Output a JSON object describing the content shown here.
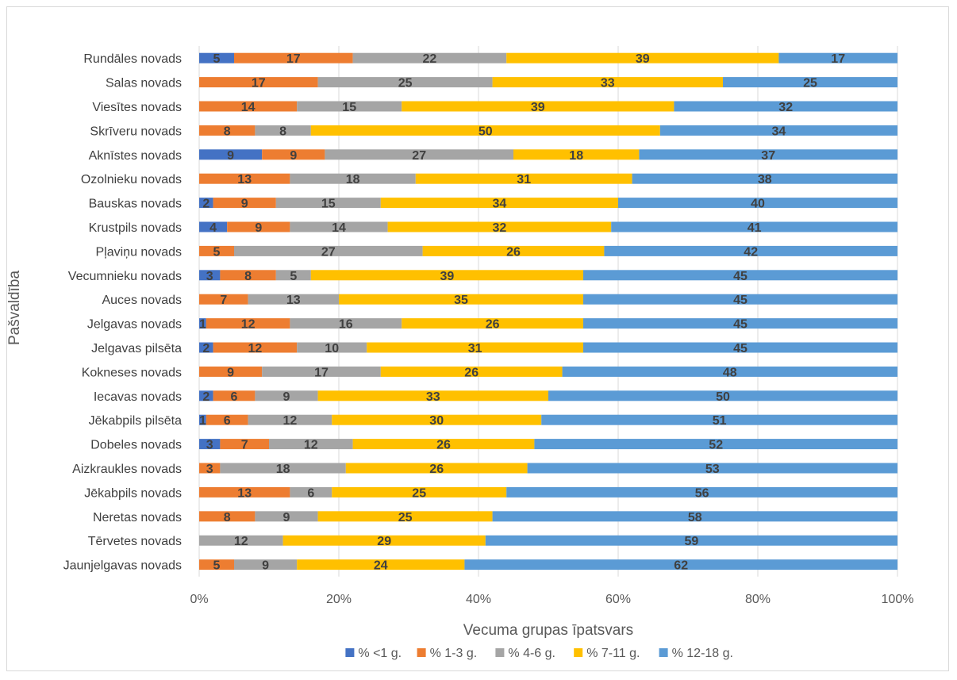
{
  "chart_data": {
    "type": "bar",
    "orientation": "horizontal",
    "stacked": "percent",
    "title": "",
    "xlabel": "Vecuma grupas īpatsvars",
    "ylabel": "Pašvaldība",
    "xlim": [
      0,
      100
    ],
    "xticks": [
      "0%",
      "20%",
      "40%",
      "60%",
      "80%",
      "100%"
    ],
    "grid": true,
    "legend_position": "bottom",
    "categories": [
      "Rundāles novads",
      "Salas novads",
      "Viesītes novads",
      "Skrīveru novads",
      "Aknīstes novads",
      "Ozolnieku novads",
      "Bauskas novads",
      "Krustpils novads",
      "Pļaviņu novads",
      "Vecumnieku novads",
      "Auces novads",
      "Jelgavas novads",
      "Jelgavas pilsēta",
      "Kokneses novads",
      "Iecavas novads",
      "Jēkabpils pilsēta",
      "Dobeles novads",
      "Aizkraukles novads",
      "Jēkabpils novads",
      "Neretas novads",
      "Tērvetes novads",
      "Jaunjelgavas novads"
    ],
    "series": [
      {
        "name": "% <1 g.",
        "color": "#4472C4",
        "values": [
          5,
          0,
          0,
          0,
          9,
          0,
          2,
          4,
          0,
          3,
          0,
          1,
          2,
          0,
          2,
          1,
          3,
          0,
          0,
          0,
          0,
          0
        ]
      },
      {
        "name": "% 1-3 g.",
        "color": "#ED7D31",
        "values": [
          17,
          17,
          14,
          8,
          9,
          13,
          9,
          9,
          5,
          8,
          7,
          12,
          12,
          9,
          6,
          6,
          7,
          3,
          13,
          8,
          0,
          5
        ]
      },
      {
        "name": "% 4-6 g.",
        "color": "#A5A5A5",
        "values": [
          22,
          25,
          15,
          8,
          27,
          18,
          15,
          14,
          27,
          5,
          13,
          16,
          10,
          17,
          9,
          12,
          12,
          18,
          6,
          9,
          12,
          9
        ]
      },
      {
        "name": "% 7-11 g.",
        "color": "#FFC000",
        "values": [
          39,
          33,
          39,
          50,
          18,
          31,
          34,
          32,
          26,
          39,
          35,
          26,
          31,
          26,
          33,
          30,
          26,
          26,
          25,
          25,
          29,
          24
        ]
      },
      {
        "name": "% 12-18 g.",
        "color": "#5B9BD5",
        "values": [
          17,
          25,
          32,
          34,
          37,
          38,
          40,
          41,
          42,
          45,
          45,
          45,
          45,
          48,
          50,
          51,
          52,
          53,
          56,
          58,
          59,
          62
        ]
      }
    ]
  }
}
